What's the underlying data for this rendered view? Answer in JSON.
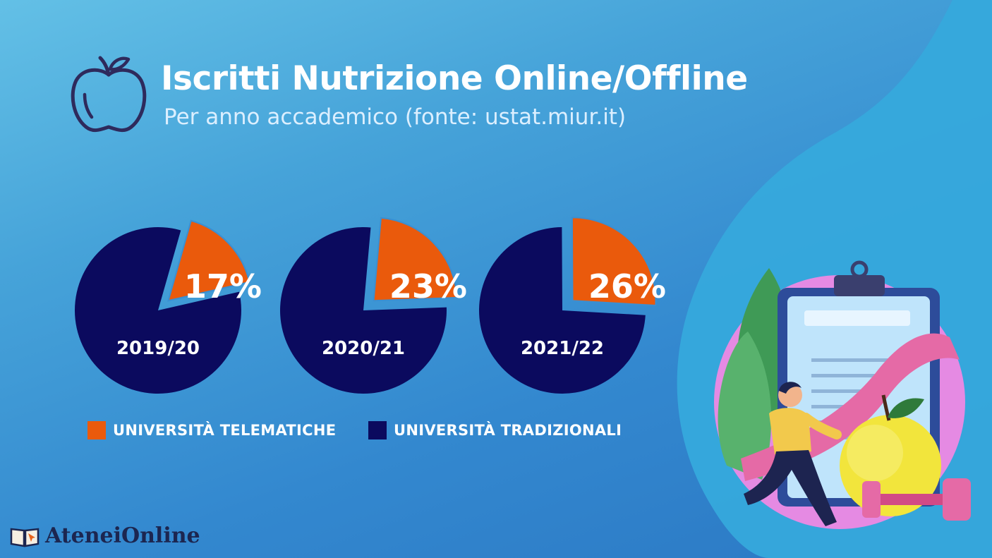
{
  "header": {
    "title": "Iscritti Nutrizione Online/Offline",
    "subtitle": "Per anno accademico (fonte: ustat.miur.it)"
  },
  "colors": {
    "telematiche": "#ea5a0c",
    "tradizionali": "#0b0a5e",
    "background": "#3a8fd2"
  },
  "chart_data": {
    "type": "pie",
    "title": "Iscritti Nutrizione Online/Offline",
    "subtitle": "Per anno accademico (fonte: ustat.miur.it)",
    "series_names": [
      "UNIVERSITÀ TELEMATICHE",
      "UNIVERSITÀ TRADIZIONALI"
    ],
    "pies": [
      {
        "year": "2019/20",
        "telematiche": 17,
        "tradizionali": 83,
        "label": "17%"
      },
      {
        "year": "2020/21",
        "telematiche": 23,
        "tradizionali": 77,
        "label": "23%"
      },
      {
        "year": "2021/22",
        "telematiche": 26,
        "tradizionali": 74,
        "label": "26%"
      }
    ],
    "legend_position": "bottom"
  },
  "legend": {
    "telematiche": "UNIVERSITÀ TELEMATICHE",
    "tradizionali": "UNIVERSITÀ TRADIZIONALI"
  },
  "brand": {
    "name": "AteneiOnline"
  },
  "icons": {
    "header": "apple-outline-icon",
    "brand": "open-book-icon",
    "illustration": "nutrition-clipboard-illustration"
  }
}
